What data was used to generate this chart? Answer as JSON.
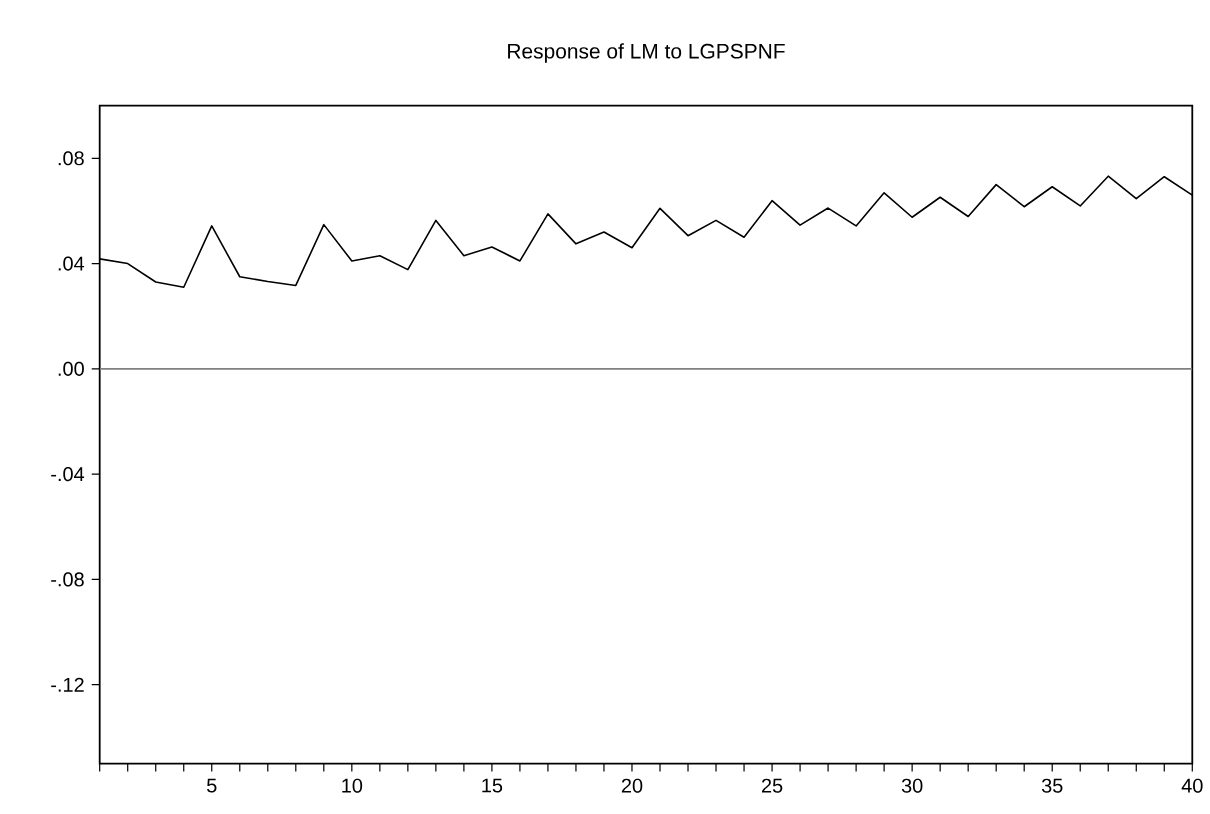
{
  "chart_data": {
    "type": "line",
    "title": "Response of LM to LGPSPNF",
    "x": [
      1,
      2,
      3,
      4,
      5,
      6,
      7,
      8,
      9,
      10,
      11,
      12,
      13,
      14,
      15,
      16,
      17,
      18,
      19,
      20,
      21,
      22,
      23,
      24,
      25,
      26,
      27,
      28,
      29,
      30,
      31,
      32,
      33,
      34,
      35,
      36,
      37,
      38,
      39,
      40
    ],
    "values": [
      0.0418,
      0.04,
      0.033,
      0.031,
      0.0543,
      0.035,
      0.0332,
      0.0317,
      0.0548,
      0.041,
      0.043,
      0.0377,
      0.0564,
      0.043,
      0.0463,
      0.041,
      0.0589,
      0.0475,
      0.052,
      0.046,
      0.061,
      0.0506,
      0.0564,
      0.05,
      0.0639,
      0.0546,
      0.0611,
      0.0543,
      0.0669,
      0.0576,
      0.0652,
      0.0579,
      0.07,
      0.0616,
      0.0692,
      0.0619,
      0.0732,
      0.0647,
      0.073,
      0.066
    ],
    "color": "#000000",
    "xlim": [
      1,
      40
    ],
    "xticks": [
      {
        "value": 1,
        "label": null
      },
      {
        "value": 2,
        "label": null
      },
      {
        "value": 3,
        "label": null
      },
      {
        "value": 4,
        "label": null
      },
      5,
      {
        "value": 6,
        "label": null
      },
      {
        "value": 7,
        "label": null
      },
      {
        "value": 8,
        "label": null
      },
      {
        "value": 9,
        "label": null
      },
      10,
      {
        "value": 11,
        "label": null
      },
      {
        "value": 12,
        "label": null
      },
      {
        "value": 13,
        "label": null
      },
      {
        "value": 14,
        "label": null
      },
      15,
      {
        "value": 16,
        "label": null
      },
      {
        "value": 17,
        "label": null
      },
      {
        "value": 18,
        "label": null
      },
      {
        "value": 19,
        "label": null
      },
      20,
      {
        "value": 21,
        "label": null
      },
      {
        "value": 22,
        "label": null
      },
      {
        "value": 23,
        "label": null
      },
      {
        "value": 24,
        "label": null
      },
      25,
      {
        "value": 26,
        "label": null
      },
      {
        "value": 27,
        "label": null
      },
      {
        "value": 28,
        "label": null
      },
      {
        "value": 29,
        "label": null
      },
      30,
      {
        "value": 31,
        "label": null
      },
      {
        "value": 32,
        "label": null
      },
      {
        "value": 33,
        "label": null
      },
      {
        "value": 34,
        "label": null
      },
      35,
      {
        "value": 36,
        "label": null
      },
      {
        "value": 37,
        "label": null
      },
      {
        "value": 38,
        "label": null
      },
      {
        "value": 39,
        "label": null
      },
      40
    ],
    "ylim": [
      -0.15,
      0.1
    ],
    "yticks": [
      {
        "value": 0.08,
        "label": ".08"
      },
      {
        "value": 0.04,
        "label": ".04"
      },
      {
        "value": 0.0,
        "label": ".00"
      },
      {
        "value": -0.04,
        "label": "-.04"
      },
      {
        "value": -0.08,
        "label": "-.08"
      },
      {
        "value": -0.12,
        "label": "-.12"
      }
    ],
    "ref_lines": [
      {
        "axis": "y",
        "value": 0,
        "color": "#808080",
        "line_style": "solid"
      }
    ],
    "marker": "none",
    "line_style": "solid"
  }
}
